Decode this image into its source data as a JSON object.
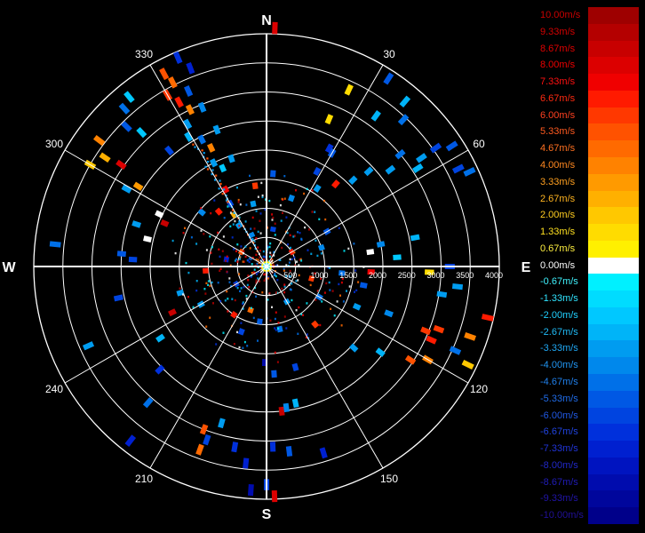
{
  "chart_data": {
    "type": "polar_radar",
    "cardinals": [
      "N",
      "E",
      "S",
      "W"
    ],
    "angle_labels": [
      "30",
      "60",
      "120",
      "150",
      "210",
      "240",
      "300",
      "330"
    ],
    "range_labels": [
      "500",
      "1000",
      "1500",
      "2000",
      "2500",
      "3000",
      "3500",
      "4000"
    ],
    "rmax": 4000,
    "legend": [
      {
        "label": "10.00m/s",
        "color": "#9e0000",
        "label_color": "#c80000"
      },
      {
        "label": "9.33m/s",
        "color": "#b40000",
        "label_color": "#d40000"
      },
      {
        "label": "8.67m/s",
        "color": "#c80000",
        "label_color": "#e00000"
      },
      {
        "label": "8.00m/s",
        "color": "#dc0000",
        "label_color": "#ee0000"
      },
      {
        "label": "7.33m/s",
        "color": "#f00000",
        "label_color": "#ff1010"
      },
      {
        "label": "6.67m/s",
        "color": "#ff1a00",
        "label_color": "#ff2a10"
      },
      {
        "label": "6.00m/s",
        "color": "#ff3800",
        "label_color": "#ff4020"
      },
      {
        "label": "5.33m/s",
        "color": "#ff5200",
        "label_color": "#ff5a20"
      },
      {
        "label": "4.67m/s",
        "color": "#ff6a00",
        "label_color": "#ff7020"
      },
      {
        "label": "4.00m/s",
        "color": "#ff8200",
        "label_color": "#ff8820"
      },
      {
        "label": "3.33m/s",
        "color": "#ff9a00",
        "label_color": "#ffa020"
      },
      {
        "label": "2.67m/s",
        "color": "#ffb000",
        "label_color": "#ffb420"
      },
      {
        "label": "2.00m/s",
        "color": "#ffc800",
        "label_color": "#ffcc20"
      },
      {
        "label": "1.33m/s",
        "color": "#ffdc00",
        "label_color": "#ffe020"
      },
      {
        "label": "0.67m/s",
        "color": "#fff000",
        "label_color": "#fff040"
      },
      {
        "label": "0.00m/s",
        "color": "#ffffff",
        "label_color": "#ffffff"
      },
      {
        "label": "-0.67m/s",
        "color": "#00f0ff",
        "label_color": "#40f4ff"
      },
      {
        "label": "-1.33m/s",
        "color": "#00dcff",
        "label_color": "#30e4ff"
      },
      {
        "label": "-2.00m/s",
        "color": "#00c8ff",
        "label_color": "#20d0ff"
      },
      {
        "label": "-2.67m/s",
        "color": "#00b4f8",
        "label_color": "#20bcf8"
      },
      {
        "label": "-3.33m/s",
        "color": "#009cf0",
        "label_color": "#20a8f4"
      },
      {
        "label": "-4.00m/s",
        "color": "#0088ec",
        "label_color": "#2094f0"
      },
      {
        "label": "-4.67m/s",
        "color": "#0070e8",
        "label_color": "#2080ec"
      },
      {
        "label": "-5.33m/s",
        "color": "#0058e4",
        "label_color": "#206ce8"
      },
      {
        "label": "-6.00m/s",
        "color": "#0044e0",
        "label_color": "#2058e4"
      },
      {
        "label": "-6.67m/s",
        "color": "#0030dc",
        "label_color": "#2044e0"
      },
      {
        "label": "-7.33m/s",
        "color": "#0020d0",
        "label_color": "#2034d8"
      },
      {
        "label": "-8.00m/s",
        "color": "#0014c0",
        "label_color": "#2028c8"
      },
      {
        "label": "-8.67m/s",
        "color": "#000cae",
        "label_color": "#201cb8"
      },
      {
        "label": "-9.33m/s",
        "color": "#00069c",
        "label_color": "#2014a8"
      },
      {
        "label": "-10.00m/s",
        "color": "#00008a",
        "label_color": "#201098"
      }
    ],
    "gates": [
      {
        "az": 332,
        "r": 3750,
        "v": 5.2
      },
      {
        "az": 333,
        "r": 3550,
        "v": 5.0
      },
      {
        "az": 330,
        "r": 3400,
        "v": 6.3
      },
      {
        "az": 332,
        "r": 3200,
        "v": 6.9
      },
      {
        "az": 334,
        "r": 3000,
        "v": 4.2
      },
      {
        "az": 331,
        "r": 2800,
        "v": -3.4
      },
      {
        "az": 329,
        "r": 2600,
        "v": -2.9
      },
      {
        "az": 333,
        "r": 2450,
        "v": -4.6
      },
      {
        "az": 335,
        "r": 2250,
        "v": 4.1
      },
      {
        "az": 337,
        "r": 3900,
        "v": -6.5
      },
      {
        "az": 339,
        "r": 3650,
        "v": -7.0
      },
      {
        "az": 336,
        "r": 3300,
        "v": -5.6
      },
      {
        "az": 338,
        "r": 2950,
        "v": -4.2
      },
      {
        "az": 340,
        "r": 2500,
        "v": -3.0
      },
      {
        "az": 332,
        "r": 1500,
        "v": 7.5
      },
      {
        "az": 330,
        "r": 1250,
        "v": -6.0
      },
      {
        "az": 328,
        "r": 1050,
        "v": 2.4
      },
      {
        "az": 326,
        "r": 850,
        "v": -3.5
      },
      {
        "az": 321,
        "r": 3750,
        "v": -2.3
      },
      {
        "az": 318,
        "r": 3650,
        "v": -4.4
      },
      {
        "az": 315,
        "r": 3400,
        "v": -5.2
      },
      {
        "az": 320,
        "r": 2600,
        "v": -6.2
      },
      {
        "az": 317,
        "r": 3150,
        "v": -2.0
      },
      {
        "az": 307,
        "r": 3600,
        "v": 3.9
      },
      {
        "az": 304,
        "r": 3350,
        "v": 2.7
      },
      {
        "az": 300,
        "r": 3500,
        "v": 2.0
      },
      {
        "az": 305,
        "r": 3050,
        "v": 7.8
      },
      {
        "az": 302,
        "r": 2600,
        "v": 3.6
      },
      {
        "az": 299,
        "r": 2750,
        "v": -3.3
      },
      {
        "az": 296,
        "r": 2050,
        "v": 0.1
      },
      {
        "az": 293,
        "r": 1900,
        "v": 8.4
      },
      {
        "az": 288,
        "r": 2350,
        "v": -3.3
      },
      {
        "az": 283,
        "r": 2100,
        "v": 0.3
      },
      {
        "az": 276,
        "r": 3650,
        "v": -4.8
      },
      {
        "az": 275,
        "r": 2500,
        "v": -5.5
      },
      {
        "az": 273,
        "r": 2300,
        "v": -6.3
      },
      {
        "az": 258,
        "r": 2600,
        "v": -5.8
      },
      {
        "az": 246,
        "r": 3350,
        "v": -3.1
      },
      {
        "az": 236,
        "r": 2200,
        "v": -2.8
      },
      {
        "az": 244,
        "r": 1800,
        "v": 8.5
      },
      {
        "az": 253,
        "r": 1550,
        "v": -3.4
      },
      {
        "az": 221,
        "r": 3100,
        "v": -4.8
      },
      {
        "az": 226,
        "r": 2550,
        "v": -6.4
      },
      {
        "az": 218,
        "r": 3800,
        "v": -7.1
      },
      {
        "az": 200,
        "r": 3350,
        "v": 4.6
      },
      {
        "az": 199,
        "r": 3150,
        "v": -5.7
      },
      {
        "az": 201,
        "r": 3000,
        "v": 5.4
      },
      {
        "az": 196,
        "r": 2800,
        "v": -3.2
      },
      {
        "az": 190,
        "r": 3150,
        "v": -6.6
      },
      {
        "az": 186,
        "r": 3400,
        "v": -7.6
      },
      {
        "az": 178,
        "r": 3100,
        "v": -6.9
      },
      {
        "az": 174,
        "r": 2500,
        "v": 8.8
      },
      {
        "az": 172,
        "r": 2450,
        "v": -4.3
      },
      {
        "az": 168,
        "r": 2400,
        "v": -2.6
      },
      {
        "az": 173,
        "r": 3200,
        "v": -5.0
      },
      {
        "az": 164,
        "r": 1800,
        "v": -5.8
      },
      {
        "az": 163,
        "r": 3350,
        "v": -7.4
      },
      {
        "az": 176,
        "r": 1850,
        "v": -5.5
      },
      {
        "az": 181,
        "r": 1650,
        "v": -8.4
      },
      {
        "az": 178,
        "r": 3950,
        "v": 7.8
      },
      {
        "az": 180,
        "r": 3750,
        "v": -6.1
      },
      {
        "az": 184,
        "r": 3850,
        "v": -8.8
      },
      {
        "az": 110,
        "r": 3150,
        "v": 6.3
      },
      {
        "az": 112,
        "r": 2950,
        "v": 5.9
      },
      {
        "az": 114,
        "r": 3100,
        "v": 6.5
      },
      {
        "az": 109,
        "r": 3700,
        "v": 4.1
      },
      {
        "az": 114,
        "r": 3550,
        "v": -4.4
      },
      {
        "az": 116,
        "r": 3850,
        "v": 1.8
      },
      {
        "az": 120,
        "r": 3200,
        "v": 3.8
      },
      {
        "az": 123,
        "r": 2950,
        "v": 5.1
      },
      {
        "az": 111,
        "r": 2250,
        "v": -4.0
      },
      {
        "az": 114,
        "r": 1700,
        "v": -3.3
      },
      {
        "az": 127,
        "r": 2450,
        "v": -2.8
      },
      {
        "az": 133,
        "r": 2050,
        "v": -3.4
      },
      {
        "az": 99,
        "r": 3050,
        "v": -3.3
      },
      {
        "az": 96,
        "r": 3300,
        "v": -3.0
      },
      {
        "az": 101,
        "r": 1700,
        "v": -5.0
      },
      {
        "az": 103,
        "r": 3900,
        "v": 6.6
      },
      {
        "az": 90,
        "r": 3150,
        "v": -5.8
      },
      {
        "az": 92,
        "r": 2800,
        "v": 1.3
      },
      {
        "az": 93,
        "r": 1800,
        "v": 7.6
      },
      {
        "az": 82,
        "r": 1800,
        "v": 0.2
      },
      {
        "az": 79,
        "r": 2000,
        "v": -4.2
      },
      {
        "az": 79,
        "r": 2600,
        "v": -2.5
      },
      {
        "az": 86,
        "r": 2250,
        "v": -2.0
      },
      {
        "az": 65,
        "r": 3850,
        "v": -4.6
      },
      {
        "az": 63,
        "r": 3700,
        "v": -5.9
      },
      {
        "az": 57,
        "r": 3800,
        "v": -5.2
      },
      {
        "az": 55,
        "r": 3550,
        "v": -5.7
      },
      {
        "az": 55,
        "r": 3250,
        "v": -3.2
      },
      {
        "az": 50,
        "r": 3000,
        "v": -4.5
      },
      {
        "az": 57,
        "r": 3100,
        "v": -2.6
      },
      {
        "az": 52,
        "r": 2700,
        "v": -3.0
      },
      {
        "az": 47,
        "r": 2400,
        "v": -3.6
      },
      {
        "az": 43,
        "r": 3450,
        "v": -4.9
      },
      {
        "az": 40,
        "r": 3700,
        "v": -2.8
      },
      {
        "az": 33,
        "r": 3850,
        "v": -5.1
      },
      {
        "az": 36,
        "r": 3200,
        "v": -2.4
      },
      {
        "az": 25,
        "r": 3350,
        "v": 1.1
      },
      {
        "az": 23,
        "r": 2750,
        "v": 1.4
      },
      {
        "az": 28,
        "r": 2300,
        "v": -6.6
      },
      {
        "az": 28,
        "r": 1850,
        "v": -6.1
      },
      {
        "az": 33,
        "r": 1600,
        "v": -3.2
      },
      {
        "az": 40,
        "r": 1850,
        "v": 6.4
      },
      {
        "az": 45,
        "r": 2100,
        "v": -3.3
      },
      {
        "az": 2,
        "r": 4100,
        "v": 7.9
      },
      {
        "az": 4,
        "r": 1600,
        "v": -5.4
      },
      {
        "az": 30,
        "r": 2250,
        "v": -5.0
      },
      {
        "az": 342,
        "r": 1950,
        "v": -3.6
      },
      {
        "az": 336,
        "r": 1850,
        "v": -2.2
      },
      {
        "az": 319,
        "r": 1250,
        "v": 6.7
      },
      {
        "az": 310,
        "r": 1450,
        "v": -4.2
      },
      {
        "az": 333,
        "r": 2000,
        "v": -3.1
      },
      {
        "az": 352,
        "r": 1400,
        "v": 5.8
      },
      {
        "az": 348,
        "r": 1100,
        "v": -3.6
      },
      {
        "az": 20,
        "r": 1250,
        "v": -4.1
      },
      {
        "az": 60,
        "r": 1200,
        "v": -5.3
      },
      {
        "az": 71,
        "r": 1000,
        "v": -3.8
      },
      {
        "az": 120,
        "r": 1050,
        "v": -4.4
      },
      {
        "az": 140,
        "r": 1300,
        "v": 6.3
      },
      {
        "az": 201,
        "r": 1200,
        "v": -5.8
      },
      {
        "az": 214,
        "r": 1000,
        "v": 6.6
      },
      {
        "az": 240,
        "r": 1300,
        "v": -3.0
      },
      {
        "az": 266,
        "r": 1050,
        "v": 7.0
      },
      {
        "az": 187,
        "r": 950,
        "v": -5.6
      },
      {
        "az": 168,
        "r": 1100,
        "v": -4.9
      },
      {
        "az": 95,
        "r": 1300,
        "v": -4.8
      },
      {
        "az": 105,
        "r": 800,
        "v": 6.0
      },
      {
        "az": 335,
        "r": 600,
        "v": -4.2
      },
      {
        "az": 300,
        "r": 500,
        "v": 5.2
      },
      {
        "az": 240,
        "r": 600,
        "v": -6.3
      },
      {
        "az": 150,
        "r": 700,
        "v": -3.2
      },
      {
        "az": 60,
        "r": 500,
        "v": 6.6
      },
      {
        "az": 10,
        "r": 650,
        "v": -5.8
      },
      {
        "az": 200,
        "r": 800,
        "v": 4.4
      },
      {
        "az": 280,
        "r": 700,
        "v": -7.4
      }
    ]
  }
}
